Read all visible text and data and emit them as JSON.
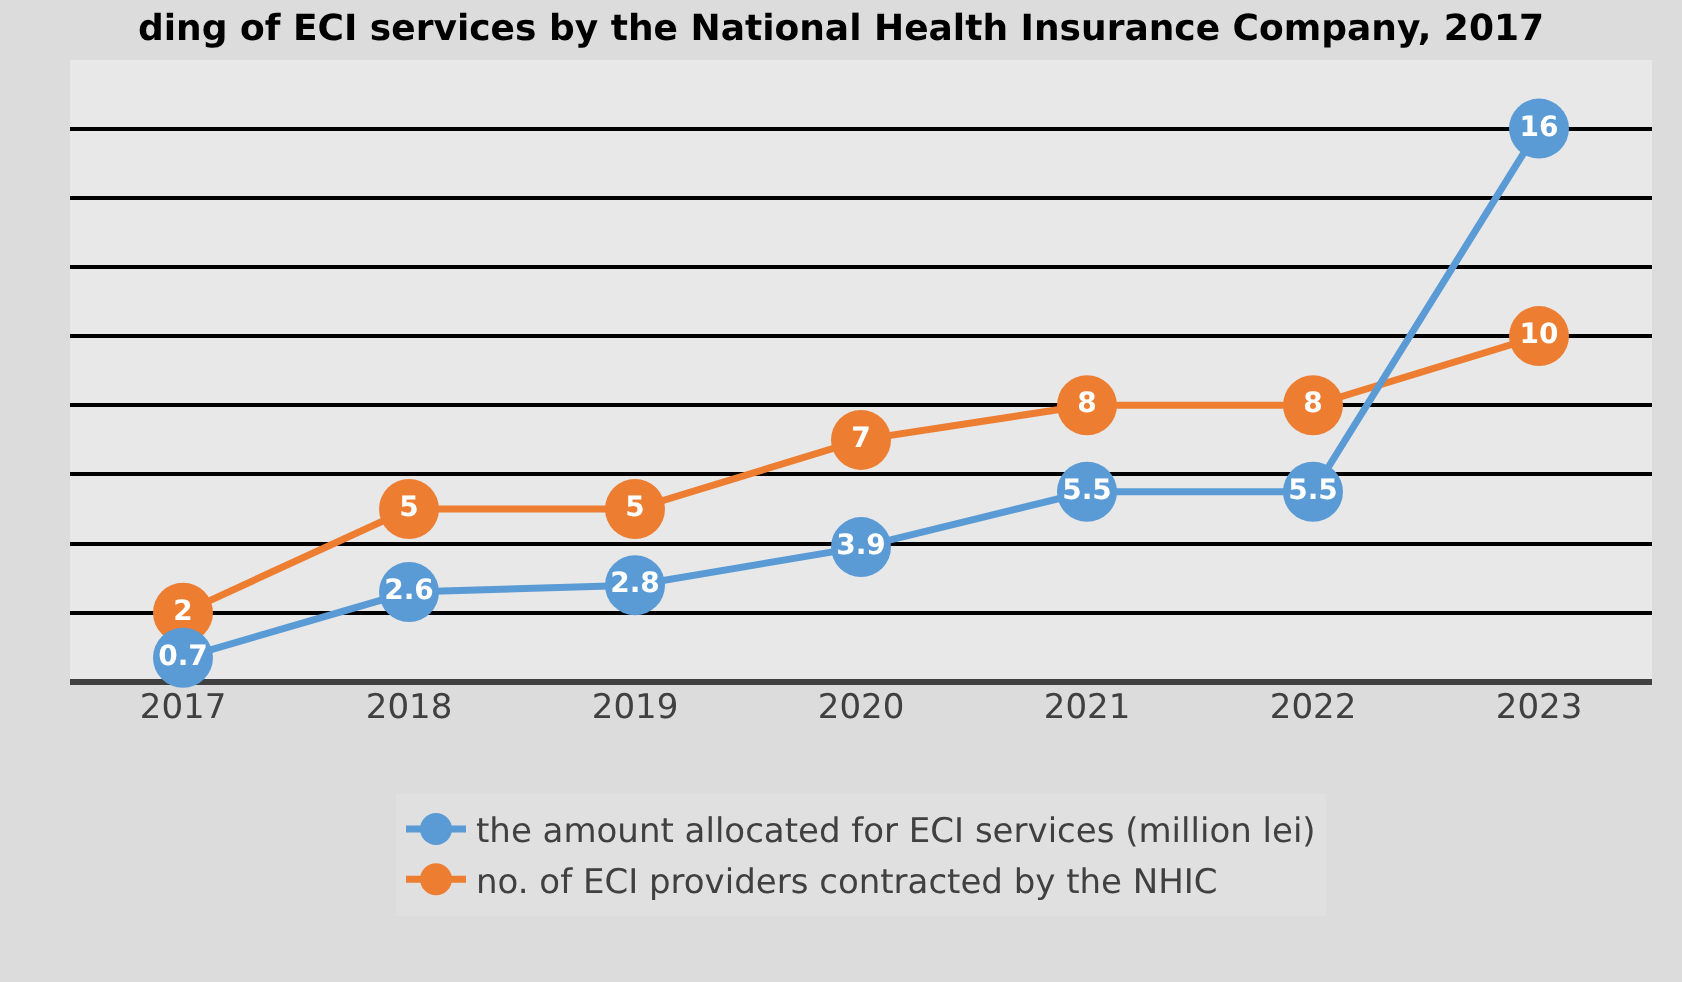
{
  "chart_data": {
    "type": "line",
    "title": "ding of ECI services by the National Health Insurance Company, 2017",
    "categories": [
      "2017",
      "2018",
      "2019",
      "2020",
      "2021",
      "2022",
      "2023"
    ],
    "series": [
      {
        "name": "the amount allocated for ECI services (million lei)",
        "color": "#5b9bd5",
        "values": [
          0.7,
          2.6,
          2.8,
          3.9,
          5.5,
          5.5,
          16
        ]
      },
      {
        "name": "no. of ECI providers contracted by the NHIC",
        "color": "#ed7d31",
        "values": [
          2,
          5,
          5,
          7,
          8,
          8,
          10
        ]
      }
    ],
    "grid": "y",
    "legend": "bottom",
    "marker": "circle",
    "line_style": "solid",
    "data_labels": true,
    "tick_labels": "x"
  }
}
